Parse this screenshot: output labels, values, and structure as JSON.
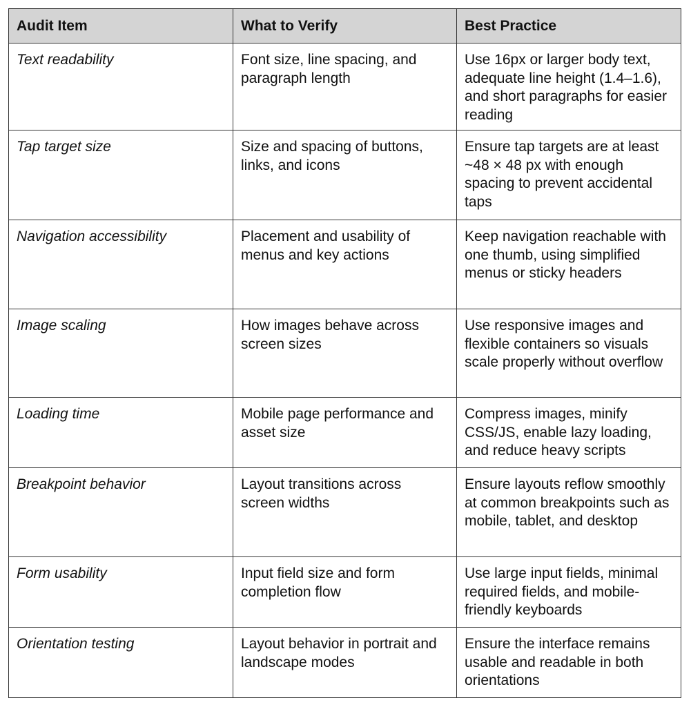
{
  "table": {
    "headers": [
      "Audit Item",
      "What to Verify",
      "Best Practice"
    ],
    "rows": [
      {
        "item": "Text readability",
        "verify": "Font size, line spacing, and paragraph length",
        "practice": "Use 16px or larger body text, adequate line height (1.4–1.6), and short paragraphs for easier reading"
      },
      {
        "item": "Tap target size",
        "verify": "Size and spacing of buttons, links, and icons",
        "practice": "Ensure tap targets are at least ~48 × 48 px with enough spacing to prevent accidental taps"
      },
      {
        "item": "Navigation accessibility",
        "verify": "Placement and usability of menus and key actions",
        "practice": "Keep navigation reachable with one thumb, using simplified menus or sticky headers"
      },
      {
        "item": "Image scaling",
        "verify": "How images behave across screen sizes",
        "practice": "Use responsive images and flexible containers so visuals scale properly without overflow"
      },
      {
        "item": "Loading time",
        "verify": "Mobile page performance and asset size",
        "practice": "Compress images, minify CSS/JS, enable lazy loading, and reduce heavy scripts"
      },
      {
        "item": "Breakpoint behavior",
        "verify": "Layout transitions across screen widths",
        "practice": "Ensure layouts reflow smoothly at common breakpoints such as mobile, tablet, and desktop"
      },
      {
        "item": "Form usability",
        "verify": "Input field size and form completion flow",
        "practice": "Use large input fields, minimal required fields, and mobile-friendly keyboards"
      },
      {
        "item": "Orientation testing",
        "verify": "Layout behavior in portrait and landscape modes",
        "practice": "Ensure the interface remains usable and readable in both orientations"
      }
    ]
  }
}
